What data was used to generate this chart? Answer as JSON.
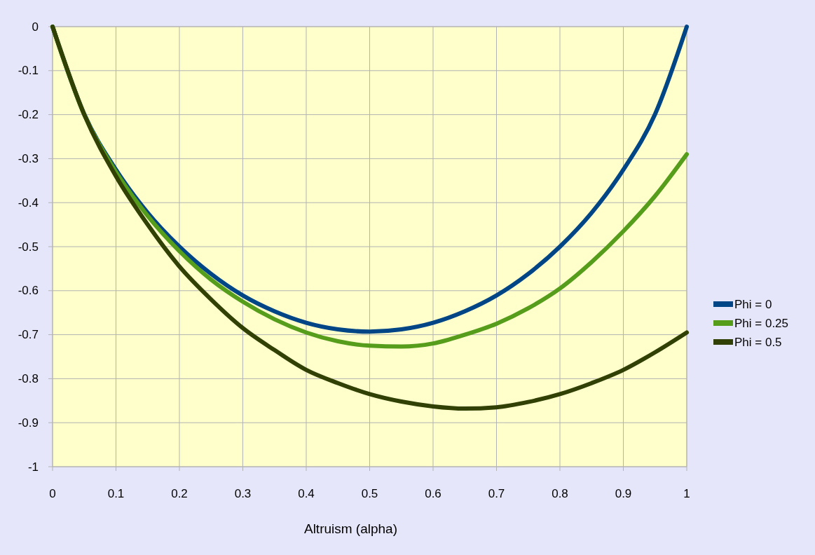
{
  "chart_data": {
    "type": "line",
    "xlabel": "Altruism (alpha)",
    "x": [
      0,
      0.05,
      0.1,
      0.15,
      0.2,
      0.25,
      0.3,
      0.35,
      0.4,
      0.45,
      0.5,
      0.55,
      0.6,
      0.65,
      0.7,
      0.75,
      0.8,
      0.85,
      0.9,
      0.95,
      1
    ],
    "series": [
      {
        "name": "Phi = 0",
        "color": "#004586",
        "values": [
          0,
          -0.199,
          -0.325,
          -0.423,
          -0.5,
          -0.562,
          -0.611,
          -0.647,
          -0.673,
          -0.688,
          -0.693,
          -0.688,
          -0.673,
          -0.647,
          -0.611,
          -0.562,
          -0.5,
          -0.423,
          -0.325,
          -0.199,
          0
        ]
      },
      {
        "name": "Phi = 0.25",
        "color": "#579d1c",
        "values": [
          0,
          -0.2,
          -0.33,
          -0.43,
          -0.51,
          -0.575,
          -0.625,
          -0.665,
          -0.695,
          -0.715,
          -0.725,
          -0.727,
          -0.72,
          -0.7,
          -0.675,
          -0.64,
          -0.595,
          -0.535,
          -0.465,
          -0.385,
          -0.29
        ]
      },
      {
        "name": "Phi = 0.5",
        "color": "#314004",
        "values": [
          0,
          -0.2,
          -0.34,
          -0.45,
          -0.545,
          -0.62,
          -0.685,
          -0.735,
          -0.78,
          -0.81,
          -0.835,
          -0.852,
          -0.863,
          -0.868,
          -0.865,
          -0.853,
          -0.835,
          -0.81,
          -0.78,
          -0.74,
          -0.695
        ]
      }
    ],
    "xlim": [
      0,
      1
    ],
    "xticks": [
      0,
      0.1,
      0.2,
      0.3,
      0.4,
      0.5,
      0.6,
      0.7,
      0.8,
      0.9,
      1
    ],
    "ylim": [
      -1,
      0
    ],
    "yticks": [
      -1,
      -0.9,
      -0.8,
      -0.7,
      -0.6,
      -0.5,
      -0.4,
      -0.3,
      -0.2,
      -0.1,
      0
    ],
    "grid": true,
    "legend": "right",
    "marker": "none",
    "line_style": "solid"
  }
}
